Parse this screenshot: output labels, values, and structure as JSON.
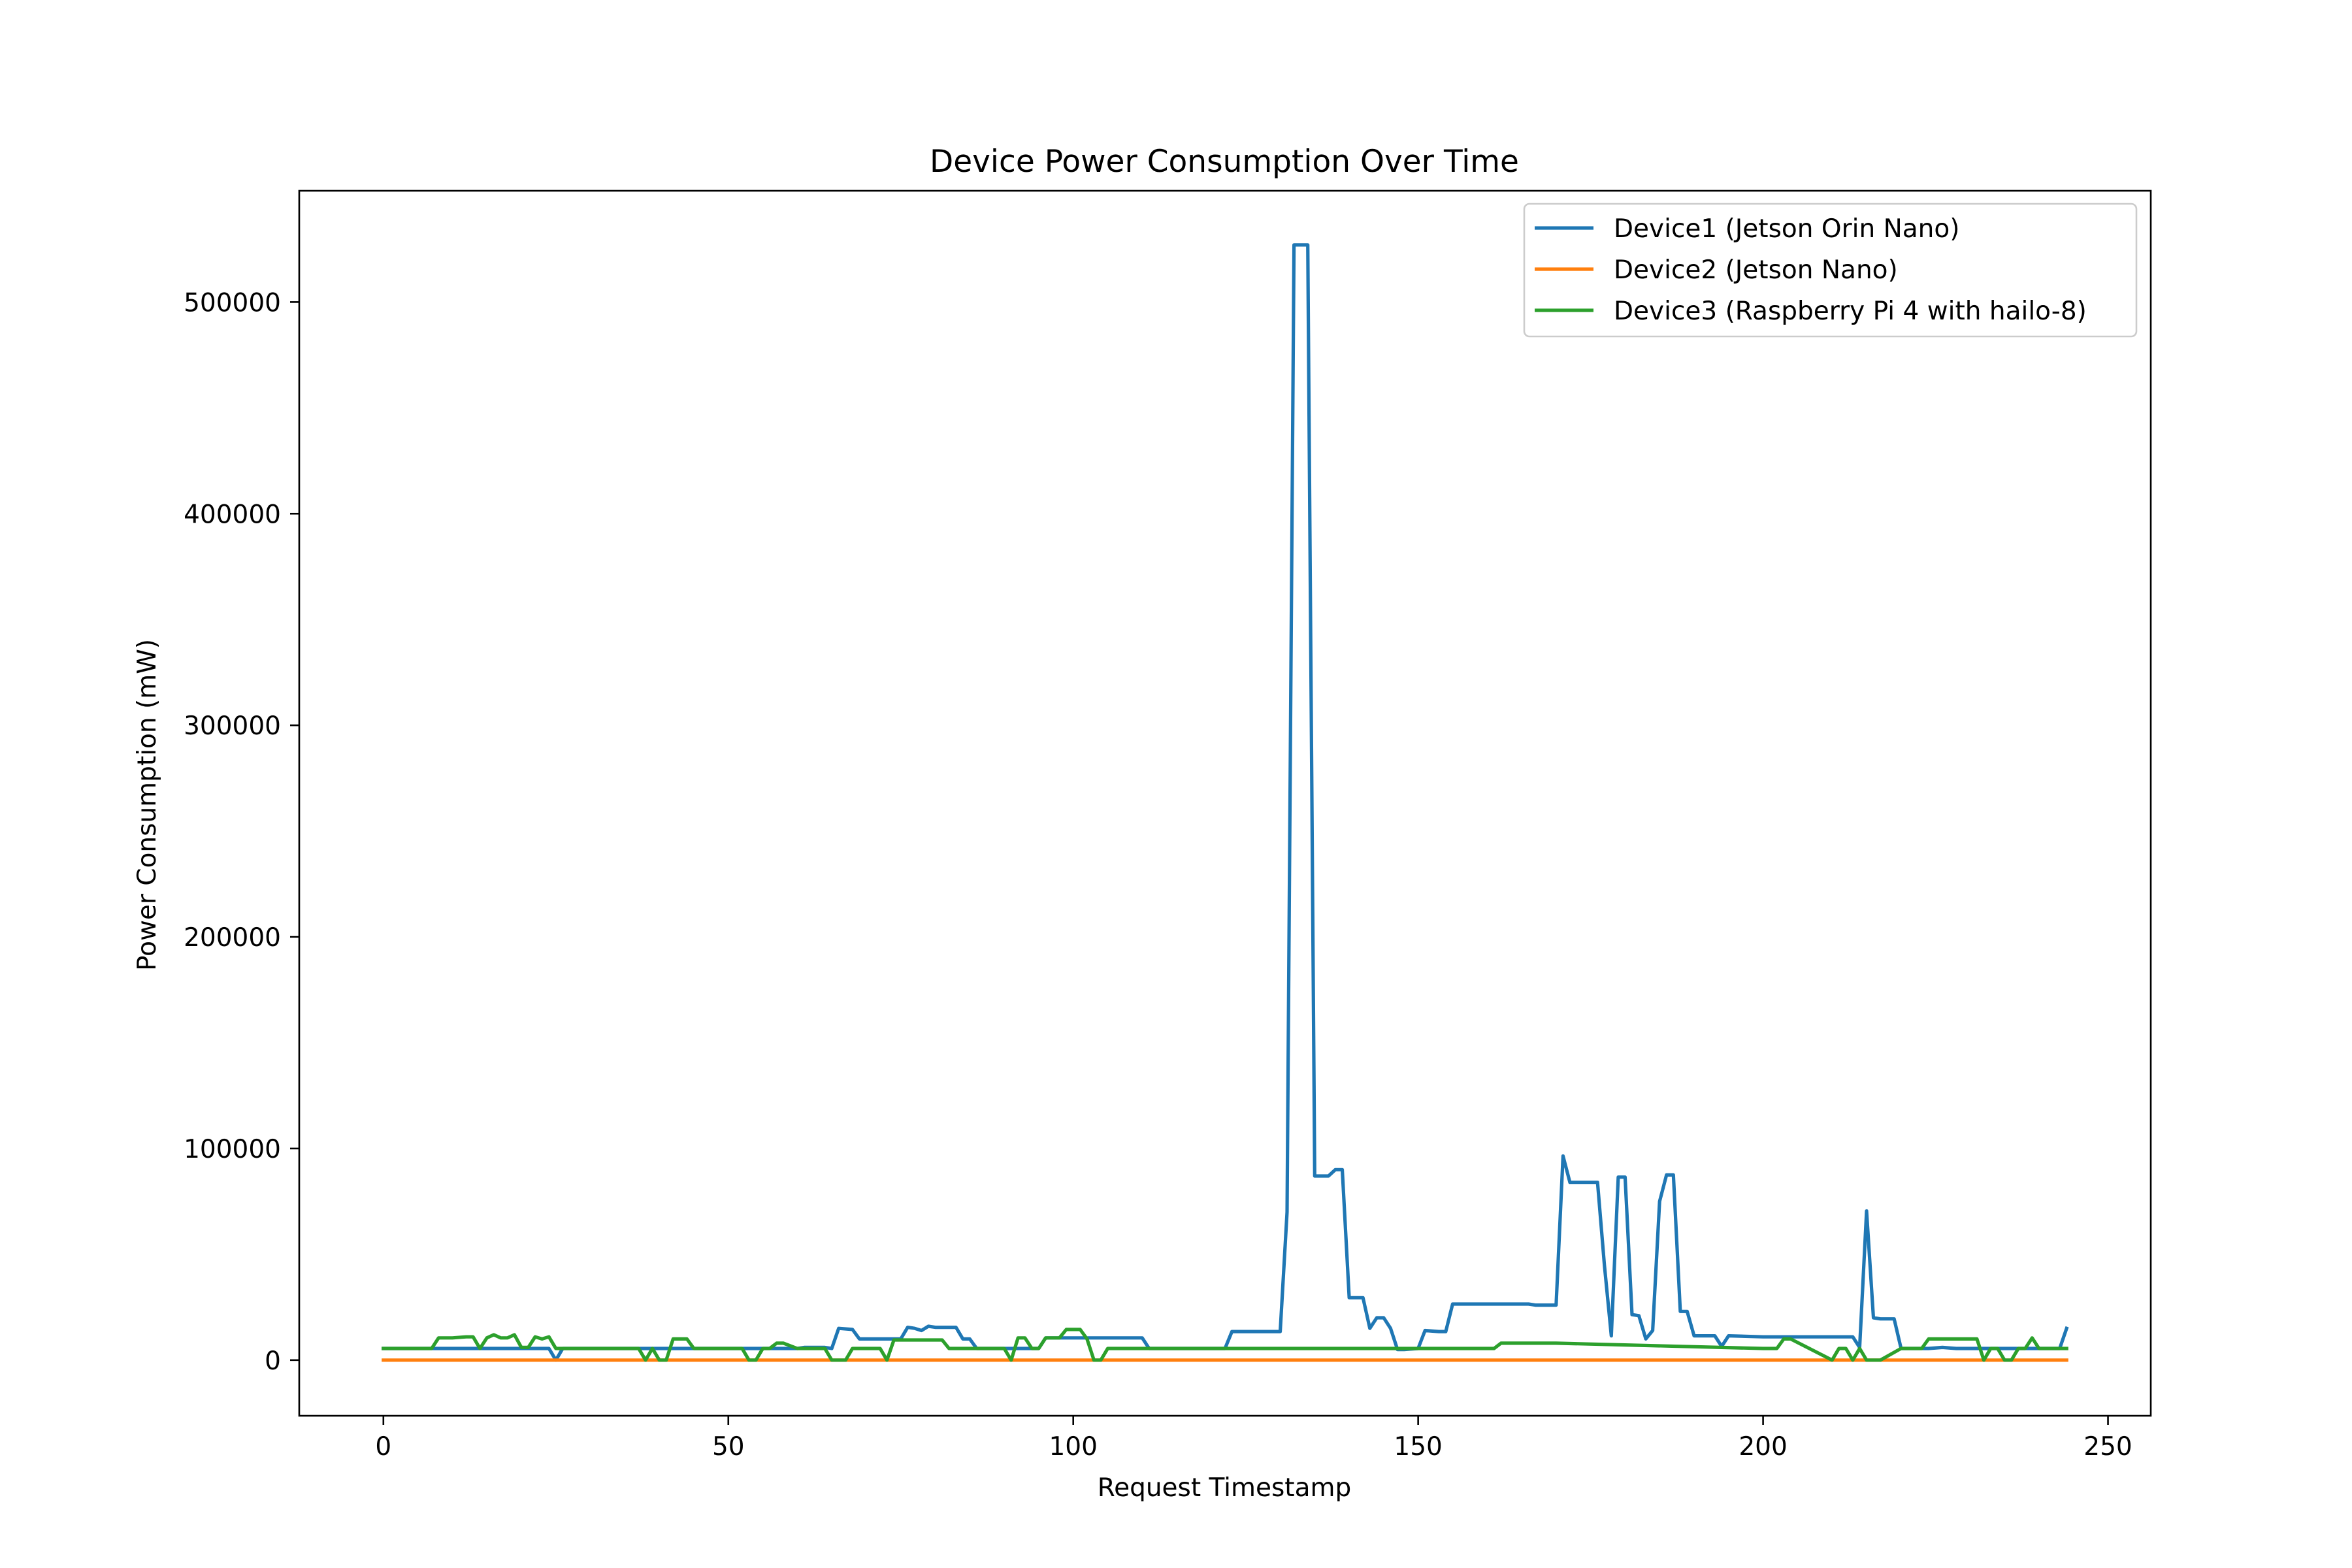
{
  "chart_data": {
    "type": "line",
    "title": "Device Power Consumption Over Time",
    "xlabel": "Request Timestamp",
    "ylabel": "Power Consumption (mW)",
    "xlim": [
      -12.2,
      256.2
    ],
    "ylim": [
      -26300,
      552600
    ],
    "xticks": [
      0,
      50,
      100,
      150,
      200,
      250
    ],
    "yticks": [
      0,
      100000,
      200000,
      300000,
      400000,
      500000
    ],
    "grid": false,
    "legend_position": "top-right",
    "series": [
      {
        "name": "Device1 (Jetson Orin Nano)",
        "color": "#1f77b4",
        "x": [
          0,
          5,
          10,
          15,
          20,
          24,
          25,
          26,
          30,
          35,
          40,
          45,
          50,
          55,
          56,
          60,
          61,
          62,
          64,
          65,
          66,
          68,
          69,
          70,
          74,
          75,
          76,
          77,
          78,
          79,
          80,
          83,
          84,
          85,
          86,
          90,
          95,
          96,
          99,
          100,
          110,
          111,
          120,
          122,
          123,
          125,
          127,
          130,
          131,
          132,
          134,
          135,
          137,
          138,
          139,
          140,
          142,
          143,
          144,
          145,
          146,
          147,
          148,
          150,
          151,
          153,
          154,
          155,
          156,
          160,
          166,
          167,
          168,
          170,
          171,
          172,
          176,
          177,
          178,
          179,
          180,
          181,
          182,
          183,
          184,
          185,
          186,
          187,
          188,
          189,
          190,
          192,
          193,
          194,
          195,
          200,
          210,
          213,
          214,
          215,
          216,
          217,
          218,
          219,
          220,
          222,
          224,
          226,
          228,
          230,
          235,
          240,
          243,
          244
        ],
        "y": [
          5500,
          5500,
          5500,
          5500,
          5500,
          5500,
          0,
          5500,
          5500,
          5500,
          5500,
          5500,
          5500,
          5500,
          5500,
          5500,
          6000,
          6000,
          6000,
          5500,
          15000,
          14500,
          10000,
          10000,
          10000,
          10000,
          15500,
          15000,
          14000,
          16000,
          15500,
          15500,
          10000,
          10000,
          5500,
          5500,
          5500,
          10500,
          10500,
          10500,
          10500,
          5500,
          5500,
          5500,
          13500,
          13500,
          13500,
          13500,
          70000,
          527000,
          527000,
          87000,
          87000,
          90000,
          90000,
          29500,
          29500,
          15000,
          20000,
          20000,
          15000,
          5000,
          5000,
          5500,
          14000,
          13500,
          13500,
          26500,
          26500,
          26500,
          26500,
          26000,
          26000,
          26000,
          96500,
          84000,
          84000,
          45000,
          11500,
          86500,
          86500,
          21500,
          21000,
          10000,
          14000,
          75000,
          87500,
          87500,
          23000,
          23000,
          11500,
          11500,
          11500,
          6500,
          11500,
          11000,
          11000,
          11000,
          6000,
          70500,
          20000,
          19500,
          19500,
          19500,
          5500,
          5500,
          5500,
          6000,
          5500,
          5500,
          5500,
          5500,
          5500,
          15000
        ]
      },
      {
        "name": "Device2 (Jetson Nano)",
        "color": "#ff7f0e",
        "x": [
          0,
          244
        ],
        "y": [
          0,
          0
        ]
      },
      {
        "name": "Device3 (Raspberry Pi 4 with hailo-8)",
        "color": "#2ca02c",
        "x": [
          0,
          7,
          8,
          9,
          10,
          12,
          13,
          14,
          15,
          16,
          17,
          18,
          19,
          20,
          21,
          22,
          23,
          24,
          25,
          30,
          37,
          38,
          39,
          40,
          41,
          42,
          43,
          44,
          45,
          50,
          52,
          53,
          54,
          55,
          56,
          57,
          58,
          60,
          63,
          64,
          65,
          66,
          67,
          68,
          72,
          73,
          74,
          75,
          80,
          81,
          82,
          90,
          91,
          92,
          93,
          94,
          95,
          96,
          97,
          98,
          99,
          100,
          101,
          102,
          103,
          104,
          105,
          106,
          110,
          130,
          132,
          160,
          161,
          162,
          170,
          200,
          201,
          202,
          203,
          204,
          210,
          211,
          212,
          213,
          214,
          215,
          216,
          217,
          220,
          223,
          224,
          230,
          231,
          232,
          233,
          234,
          235,
          236,
          237,
          238,
          239,
          240,
          244
        ],
        "y": [
          5500,
          5500,
          10500,
          10500,
          10500,
          11000,
          11000,
          5500,
          10500,
          12000,
          10500,
          10500,
          12000,
          6000,
          6000,
          11000,
          10000,
          11000,
          5500,
          5500,
          5500,
          0,
          5500,
          0,
          0,
          10000,
          10000,
          10000,
          5500,
          5500,
          5500,
          0,
          0,
          5500,
          5500,
          8000,
          8000,
          5500,
          5500,
          5500,
          0,
          0,
          0,
          5500,
          5500,
          0,
          9500,
          9500,
          9500,
          9500,
          5500,
          5500,
          0,
          10500,
          10500,
          5500,
          5500,
          10500,
          10500,
          10500,
          14500,
          14500,
          14500,
          10000,
          0,
          0,
          5500,
          5500,
          5500,
          5500,
          5500,
          5500,
          5500,
          8000,
          8000,
          5500,
          5500,
          5500,
          10000,
          10000,
          0,
          5500,
          5500,
          0,
          5500,
          0,
          0,
          0,
          5500,
          5500,
          10000,
          10000,
          10000,
          0,
          5500,
          5500,
          0,
          0,
          5500,
          5500,
          10500,
          5500,
          5500
        ]
      }
    ]
  }
}
